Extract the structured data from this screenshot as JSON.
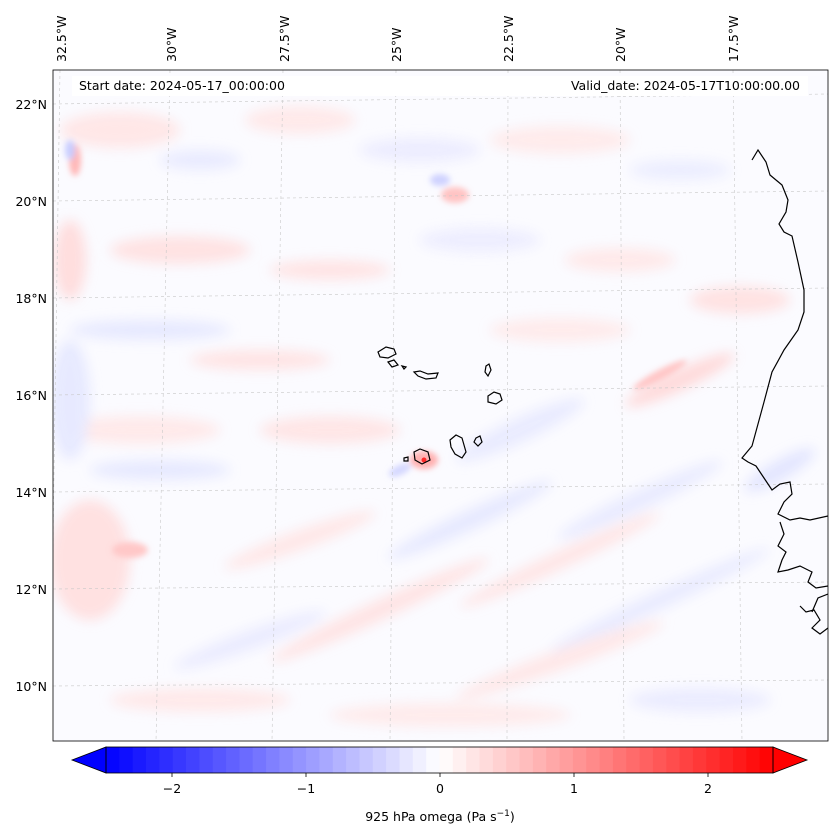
{
  "map": {
    "start_date_label": "Start date: 2024-05-17_00:00:00",
    "valid_date_label": "Valid_date: 2024-05-17T10:00:00.00",
    "lon_labels": [
      "32.5°W",
      "30°W",
      "27.5°W",
      "25°W",
      "22.5°W",
      "20°W",
      "17.5°W"
    ],
    "lat_labels": [
      "22°N",
      "20°N",
      "18°N",
      "16°N",
      "14°N",
      "12°N",
      "10°N"
    ]
  },
  "colorbar": {
    "ticks": [
      "−2",
      "−1",
      "0",
      "1",
      "2"
    ],
    "label": "925 hPa omega (Pa s",
    "label_sup": "−1",
    "label_close": ")",
    "range": [
      -2.5,
      2.5
    ],
    "colors": {
      "negative": "#0000ff",
      "zero": "#ffffff",
      "positive": "#ff0000"
    }
  }
}
